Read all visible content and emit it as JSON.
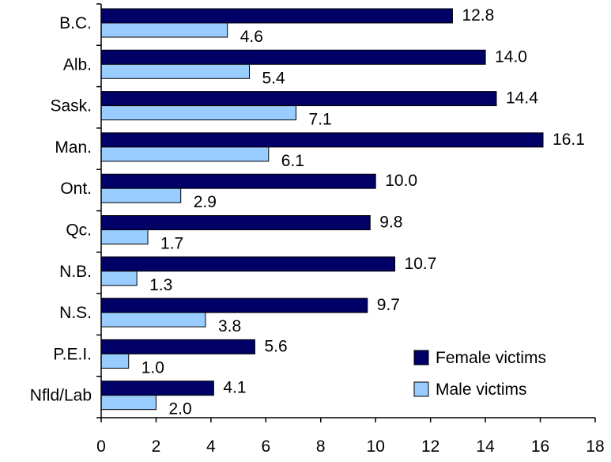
{
  "chart_data": {
    "type": "bar",
    "orientation": "horizontal",
    "title": "",
    "xlabel": "",
    "ylabel": "",
    "categories": [
      "B.C.",
      "Alb.",
      "Sask.",
      "Man.",
      "Ont.",
      "Qc.",
      "N.B.",
      "N.S.",
      "P.E.I.",
      "Nfld/Lab"
    ],
    "series": [
      {
        "name": "Female victims",
        "color": "#000066",
        "values": [
          12.8,
          14.0,
          14.4,
          16.1,
          10.0,
          9.8,
          10.7,
          9.7,
          5.6,
          4.1
        ],
        "labels": [
          "12.8",
          "14.0",
          "14.4",
          "16.1",
          "10.0",
          "9.8",
          "10.7",
          "9.7",
          "5.6",
          "4.1"
        ]
      },
      {
        "name": "Male victims",
        "color": "#99ccff",
        "values": [
          4.6,
          5.4,
          7.1,
          6.1,
          2.9,
          1.7,
          1.3,
          3.8,
          1.0,
          2.0
        ],
        "labels": [
          "4.6",
          "5.4",
          "7.1",
          "6.1",
          "2.9",
          "1.7",
          "1.3",
          "3.8",
          "1.0",
          "2.0"
        ]
      }
    ],
    "xlim": [
      0,
      18
    ],
    "xticks": [
      "0",
      "2",
      "4",
      "6",
      "8",
      "10",
      "12",
      "14",
      "16",
      "18"
    ],
    "grid": false,
    "legend_position": "bottom-right"
  }
}
